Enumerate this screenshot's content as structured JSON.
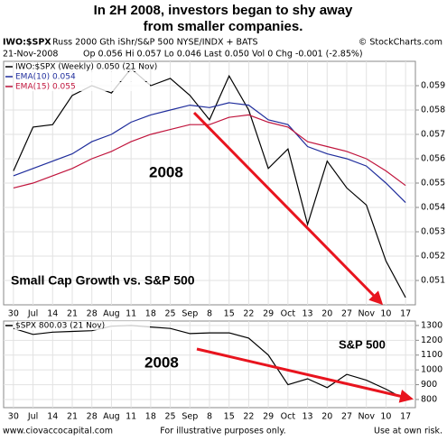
{
  "header": {
    "title_line1": "In 2H 2008, investors began to shy away",
    "title_line2": "from smaller companies.",
    "symbol": "IWO:$SPX",
    "description": "Russ 2000 Gth iShr/S&P 500 NYSE/INDX + BATS",
    "copyright": "© StockCharts.com",
    "date": "21-Nov-2008",
    "quote": "Op 0.056 Hi 0.057 Lo 0.046 Last 0.050 Vol 0 Chg -0.001 (-2.85%)"
  },
  "footer": {
    "site": "www.ciovaccocapital.com",
    "note": "For illustrative purposes only.",
    "risk": "Use at own risk."
  },
  "chart_data": [
    {
      "type": "line",
      "annotations": [
        "2008",
        "Small Cap Growth  vs. S&P 500"
      ],
      "categories": [
        "30",
        "Jul",
        "14",
        "21",
        "28",
        "Aug",
        "11",
        "18",
        "25",
        "Sep",
        "8",
        "15",
        "22",
        "29",
        "Oct",
        "13",
        "20",
        "27",
        "Nov",
        "10",
        "17"
      ],
      "series": [
        {
          "name": "IWO:$SPX (Weekly) 0.050 (21 Nov)",
          "color": "#000000",
          "values": [
            0.0555,
            0.0573,
            0.0574,
            0.0586,
            0.059,
            0.0587,
            0.0597,
            0.059,
            0.0593,
            0.0586,
            0.0576,
            0.0594,
            0.058,
            0.0556,
            0.0564,
            0.0533,
            0.0559,
            0.0548,
            0.0541,
            0.0518,
            0.0503
          ]
        },
        {
          "name": "EMA(10) 0.054",
          "color": "#1f2d9c",
          "values": [
            0.0553,
            0.0556,
            0.0559,
            0.0562,
            0.0567,
            0.057,
            0.0575,
            0.0578,
            0.058,
            0.0582,
            0.0581,
            0.0583,
            0.0582,
            0.0576,
            0.0574,
            0.0565,
            0.0562,
            0.056,
            0.0557,
            0.055,
            0.0542
          ]
        },
        {
          "name": "EMA(15) 0.055",
          "color": "#c0143c",
          "values": [
            0.0548,
            0.055,
            0.0553,
            0.0556,
            0.056,
            0.0563,
            0.0567,
            0.057,
            0.0572,
            0.0574,
            0.0574,
            0.0577,
            0.0578,
            0.0575,
            0.0573,
            0.0567,
            0.0565,
            0.0563,
            0.056,
            0.0555,
            0.0549
          ]
        }
      ],
      "ylim": [
        0.05,
        0.06
      ],
      "yticks": [
        0.051,
        0.052,
        0.053,
        0.054,
        0.055,
        0.056,
        0.057,
        0.058,
        0.059
      ],
      "grid": true
    },
    {
      "type": "line",
      "annotations": [
        "2008",
        "S&P 500"
      ],
      "categories": [
        "30",
        "Jul",
        "14",
        "21",
        "28",
        "Aug",
        "11",
        "18",
        "25",
        "Sep",
        "8",
        "15",
        "22",
        "29",
        "Oct",
        "13",
        "20",
        "27",
        "Nov",
        "10",
        "17"
      ],
      "series": [
        {
          "name": "$SPX 800.03 (21 Nov)",
          "color": "#000000",
          "values": [
            1280,
            1240,
            1255,
            1260,
            1265,
            1295,
            1300,
            1290,
            1280,
            1245,
            1250,
            1250,
            1215,
            1100,
            900,
            940,
            880,
            970,
            930,
            870,
            800
          ]
        }
      ],
      "ylim": [
        745,
        1330
      ],
      "yticks": [
        800,
        900,
        1000,
        1100,
        1200,
        1300
      ],
      "grid": true
    }
  ]
}
